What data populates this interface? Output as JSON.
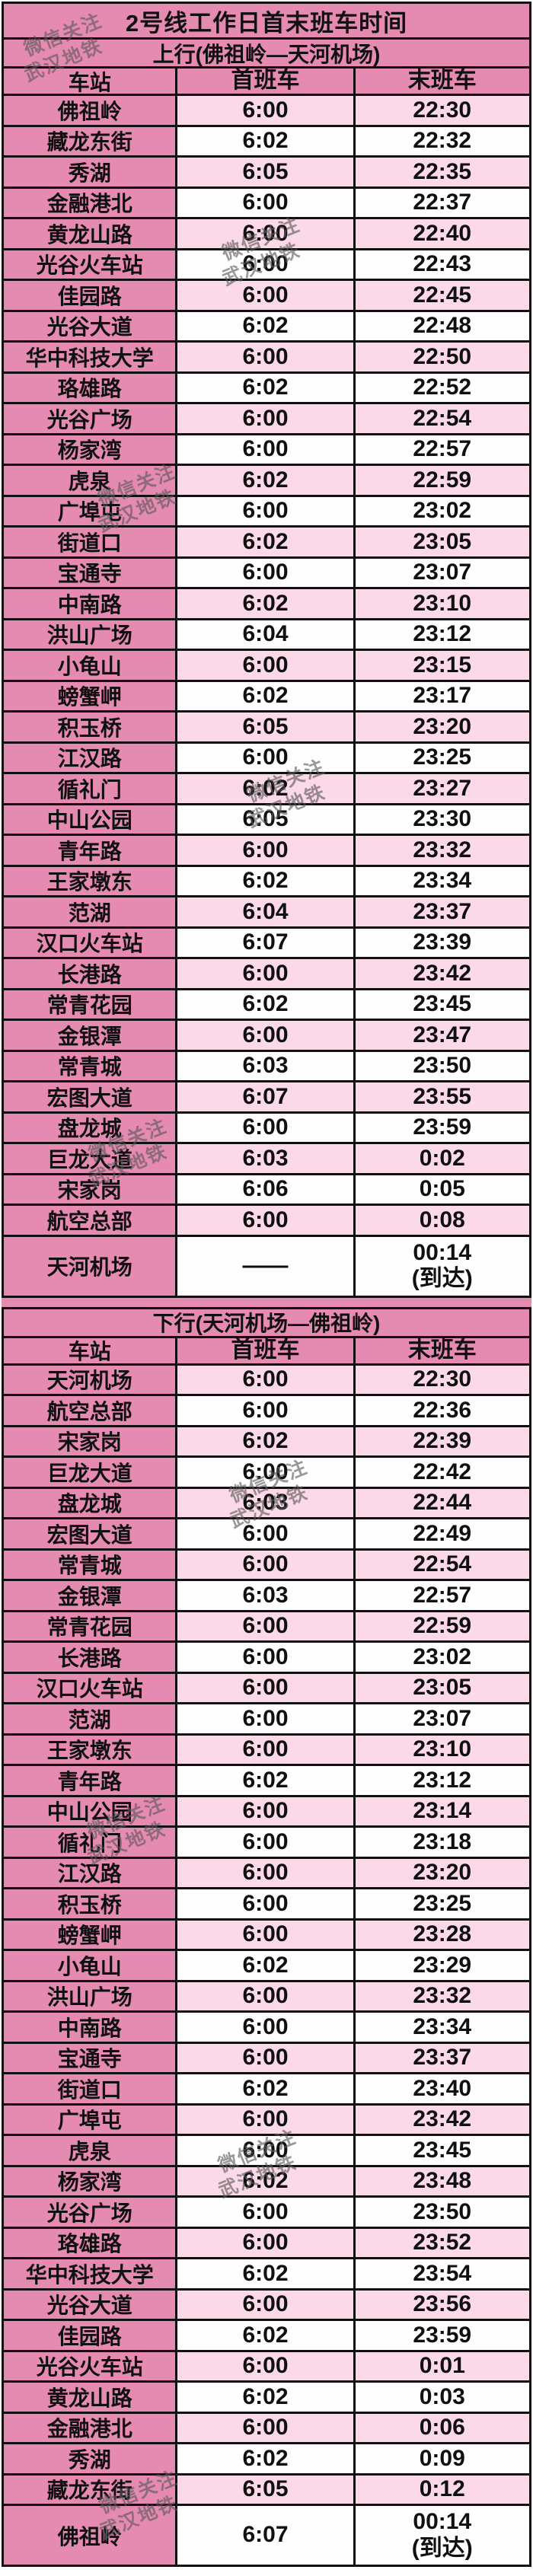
{
  "title": "2号线工作日首末班车时间",
  "watermark": {
    "line1": "微信关注",
    "line2": "武汉地铁"
  },
  "columns": {
    "station": "车站",
    "first": "首班车",
    "last": "末班车"
  },
  "colors": {
    "accent_pink": "#e58ab1",
    "row_pink": "#fbd9e8",
    "row_white": "#fefefe",
    "border": "#101010"
  },
  "sections": [
    {
      "heading": "上行(佛祖岭—天河机场)",
      "rows": [
        {
          "station": "佛祖岭",
          "first": "6:00",
          "last": "22:30"
        },
        {
          "station": "藏龙东街",
          "first": "6:02",
          "last": "22:32"
        },
        {
          "station": "秀湖",
          "first": "6:05",
          "last": "22:35"
        },
        {
          "station": "金融港北",
          "first": "6:00",
          "last": "22:37"
        },
        {
          "station": "黄龙山路",
          "first": "6:00",
          "last": "22:40"
        },
        {
          "station": "光谷火车站",
          "first": "6:00",
          "last": "22:43"
        },
        {
          "station": "佳园路",
          "first": "6:00",
          "last": "22:45"
        },
        {
          "station": "光谷大道",
          "first": "6:02",
          "last": "22:48"
        },
        {
          "station": "华中科技大学",
          "first": "6:00",
          "last": "22:50"
        },
        {
          "station": "珞雄路",
          "first": "6:02",
          "last": "22:52"
        },
        {
          "station": "光谷广场",
          "first": "6:00",
          "last": "22:54"
        },
        {
          "station": "杨家湾",
          "first": "6:00",
          "last": "22:57"
        },
        {
          "station": "虎泉",
          "first": "6:02",
          "last": "22:59"
        },
        {
          "station": "广埠屯",
          "first": "6:00",
          "last": "23:02"
        },
        {
          "station": "街道口",
          "first": "6:02",
          "last": "23:05"
        },
        {
          "station": "宝通寺",
          "first": "6:00",
          "last": "23:07"
        },
        {
          "station": "中南路",
          "first": "6:02",
          "last": "23:10"
        },
        {
          "station": "洪山广场",
          "first": "6:04",
          "last": "23:12"
        },
        {
          "station": "小龟山",
          "first": "6:00",
          "last": "23:15"
        },
        {
          "station": "螃蟹岬",
          "first": "6:02",
          "last": "23:17"
        },
        {
          "station": "积玉桥",
          "first": "6:05",
          "last": "23:20"
        },
        {
          "station": "江汉路",
          "first": "6:00",
          "last": "23:25"
        },
        {
          "station": "循礼门",
          "first": "6:02",
          "last": "23:27"
        },
        {
          "station": "中山公园",
          "first": "6:05",
          "last": "23:30"
        },
        {
          "station": "青年路",
          "first": "6:00",
          "last": "23:32"
        },
        {
          "station": "王家墩东",
          "first": "6:02",
          "last": "23:34"
        },
        {
          "station": "范湖",
          "first": "6:04",
          "last": "23:37"
        },
        {
          "station": "汉口火车站",
          "first": "6:07",
          "last": "23:39"
        },
        {
          "station": "长港路",
          "first": "6:00",
          "last": "23:42"
        },
        {
          "station": "常青花园",
          "first": "6:02",
          "last": "23:45"
        },
        {
          "station": "金银潭",
          "first": "6:00",
          "last": "23:47"
        },
        {
          "station": "常青城",
          "first": "6:03",
          "last": "23:50"
        },
        {
          "station": "宏图大道",
          "first": "6:07",
          "last": "23:55"
        },
        {
          "station": "盘龙城",
          "first": "6:00",
          "last": "23:59"
        },
        {
          "station": "巨龙大道",
          "first": "6:03",
          "last": "0:02"
        },
        {
          "station": "宋家岗",
          "first": "6:06",
          "last": "0:05"
        },
        {
          "station": "航空总部",
          "first": "6:00",
          "last": "0:08"
        },
        {
          "station": "天河机场",
          "first": "——",
          "last": "00:14\n(到达)",
          "tall": true
        }
      ]
    },
    {
      "heading": "下行(天河机场—佛祖岭)",
      "rows": [
        {
          "station": "天河机场",
          "first": "6:00",
          "last": "22:30"
        },
        {
          "station": "航空总部",
          "first": "6:00",
          "last": "22:36"
        },
        {
          "station": "宋家岗",
          "first": "6:02",
          "last": "22:39"
        },
        {
          "station": "巨龙大道",
          "first": "6:00",
          "last": "22:42"
        },
        {
          "station": "盘龙城",
          "first": "6:03",
          "last": "22:44"
        },
        {
          "station": "宏图大道",
          "first": "6:00",
          "last": "22:49"
        },
        {
          "station": "常青城",
          "first": "6:00",
          "last": "22:54"
        },
        {
          "station": "金银潭",
          "first": "6:03",
          "last": "22:57"
        },
        {
          "station": "常青花园",
          "first": "6:00",
          "last": "22:59"
        },
        {
          "station": "长港路",
          "first": "6:00",
          "last": "23:02"
        },
        {
          "station": "汉口火车站",
          "first": "6:00",
          "last": "23:05"
        },
        {
          "station": "范湖",
          "first": "6:00",
          "last": "23:07"
        },
        {
          "station": "王家墩东",
          "first": "6:00",
          "last": "23:10"
        },
        {
          "station": "青年路",
          "first": "6:02",
          "last": "23:12"
        },
        {
          "station": "中山公园",
          "first": "6:00",
          "last": "23:14"
        },
        {
          "station": "循礼门",
          "first": "6:00",
          "last": "23:18"
        },
        {
          "station": "江汉路",
          "first": "6:00",
          "last": "23:20"
        },
        {
          "station": "积玉桥",
          "first": "6:00",
          "last": "23:25"
        },
        {
          "station": "螃蟹岬",
          "first": "6:00",
          "last": "23:28"
        },
        {
          "station": "小龟山",
          "first": "6:02",
          "last": "23:29"
        },
        {
          "station": "洪山广场",
          "first": "6:00",
          "last": "23:32"
        },
        {
          "station": "中南路",
          "first": "6:00",
          "last": "23:34"
        },
        {
          "station": "宝通寺",
          "first": "6:00",
          "last": "23:37"
        },
        {
          "station": "街道口",
          "first": "6:02",
          "last": "23:40"
        },
        {
          "station": "广埠屯",
          "first": "6:00",
          "last": "23:42"
        },
        {
          "station": "虎泉",
          "first": "6:00",
          "last": "23:45"
        },
        {
          "station": "杨家湾",
          "first": "6:02",
          "last": "23:48"
        },
        {
          "station": "光谷广场",
          "first": "6:00",
          "last": "23:50"
        },
        {
          "station": "珞雄路",
          "first": "6:00",
          "last": "23:52"
        },
        {
          "station": "华中科技大学",
          "first": "6:02",
          "last": "23:54"
        },
        {
          "station": "光谷大道",
          "first": "6:00",
          "last": "23:56"
        },
        {
          "station": "佳园路",
          "first": "6:02",
          "last": "23:59"
        },
        {
          "station": "光谷火车站",
          "first": "6:00",
          "last": "0:01"
        },
        {
          "station": "黄龙山路",
          "first": "6:02",
          "last": "0:03"
        },
        {
          "station": "金融港北",
          "first": "6:00",
          "last": "0:06"
        },
        {
          "station": "秀湖",
          "first": "6:02",
          "last": "0:09"
        },
        {
          "station": "藏龙东街",
          "first": "6:05",
          "last": "0:12"
        },
        {
          "station": "佛祖岭",
          "first": "6:07",
          "last": "00:14\n(到达)",
          "tall": true
        }
      ]
    }
  ]
}
